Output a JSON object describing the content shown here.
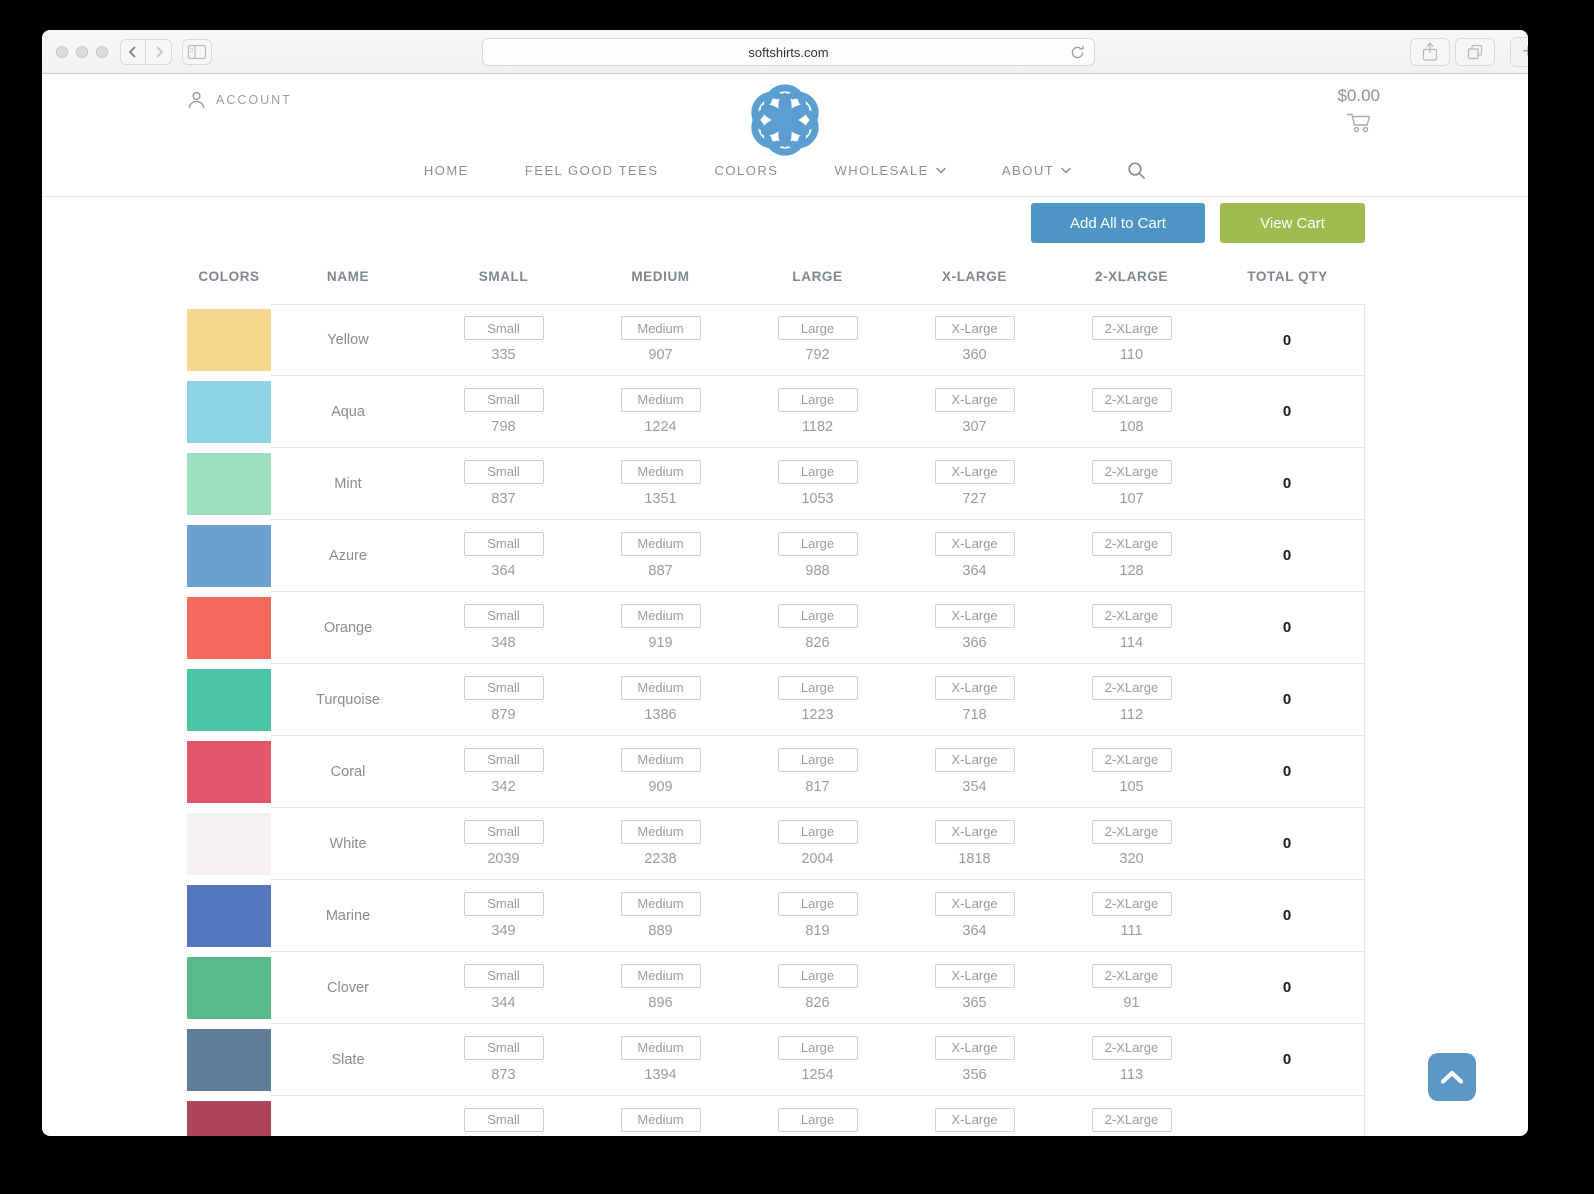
{
  "browser": {
    "url": "softshirts.com",
    "new_tab_label": "+"
  },
  "header": {
    "account_label": "ACCOUNT",
    "cart_total": "$0.00",
    "nav": [
      {
        "label": "HOME",
        "has_dropdown": false
      },
      {
        "label": "FEEL GOOD TEES",
        "has_dropdown": false
      },
      {
        "label": "COLORS",
        "has_dropdown": false
      },
      {
        "label": "WHOLESALE",
        "has_dropdown": true
      },
      {
        "label": "ABOUT",
        "has_dropdown": true
      }
    ]
  },
  "toolbar": {
    "add_all_label": "Add All to Cart",
    "view_cart_label": "View Cart"
  },
  "table": {
    "columns": [
      "COLORS",
      "NAME",
      "SMALL",
      "MEDIUM",
      "LARGE",
      "X-LARGE",
      "2-XLARGE",
      "TOTAL QTY"
    ],
    "size_placeholders": [
      "Small",
      "Medium",
      "Large",
      "X-Large",
      "2-XLarge"
    ],
    "rows": [
      {
        "name": "Yellow",
        "color": "#f5d78d",
        "stock": [
          335,
          907,
          792,
          360,
          110
        ],
        "total": 0
      },
      {
        "name": "Aqua",
        "color": "#8ed4e4",
        "stock": [
          798,
          1224,
          1182,
          307,
          108
        ],
        "total": 0
      },
      {
        "name": "Mint",
        "color": "#9cdec0",
        "stock": [
          837,
          1351,
          1053,
          727,
          107
        ],
        "total": 0
      },
      {
        "name": "Azure",
        "color": "#6ba1ce",
        "stock": [
          364,
          887,
          988,
          364,
          128
        ],
        "total": 0
      },
      {
        "name": "Orange",
        "color": "#f7685c",
        "stock": [
          348,
          919,
          826,
          366,
          114
        ],
        "total": 0
      },
      {
        "name": "Turquoise",
        "color": "#4ec4a6",
        "stock": [
          879,
          1386,
          1223,
          718,
          112
        ],
        "total": 0
      },
      {
        "name": "Coral",
        "color": "#e45669",
        "stock": [
          342,
          909,
          817,
          354,
          105
        ],
        "total": 0
      },
      {
        "name": "White",
        "color": "#f4f0f4",
        "stock": [
          2039,
          2238,
          2004,
          1818,
          320
        ],
        "total": 0
      },
      {
        "name": "Marine",
        "color": "#5577bd",
        "stock": [
          349,
          889,
          819,
          364,
          111
        ],
        "total": 0
      },
      {
        "name": "Clover",
        "color": "#5aba88",
        "stock": [
          344,
          896,
          826,
          365,
          91
        ],
        "total": 0
      },
      {
        "name": "Slate",
        "color": "#5f7d96",
        "stock": [
          873,
          1394,
          1254,
          356,
          113
        ],
        "total": 0
      }
    ],
    "partial_row": {
      "color": "#b04559"
    }
  },
  "colors": {
    "logo_blue": "#5b9ecf",
    "add_button": "#4d95c5",
    "view_button": "#9fbc51",
    "scroll_top_button": "#5b98c8"
  }
}
